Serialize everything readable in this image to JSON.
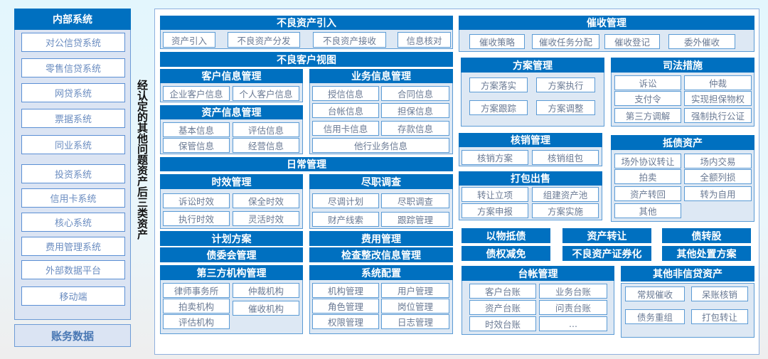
{
  "internal_systems": {
    "title": "内部系统",
    "items": [
      "对公信贷系统",
      "零售信贷系统",
      "网贷系统",
      "票据系统",
      "同业系统",
      "投资系统",
      "信用卡系统",
      "核心系统",
      "费用管理系统",
      "外部数据平台",
      "移动端"
    ]
  },
  "accounting_data": "账务数据",
  "vertical_label": "经认定的其他问题资产后三类资产",
  "modules": {
    "npa_intake": {
      "title": "不良资产引入",
      "items": [
        "资产引入",
        "不良资产分发",
        "不良资产接收",
        "信息核对"
      ]
    },
    "npa_customer_view": {
      "title": "不良客户视图"
    },
    "customer_info": {
      "title": "客户信息管理",
      "items": [
        "企业客户信息",
        "个人客户信息"
      ]
    },
    "asset_info": {
      "title": "资产信息管理",
      "items": [
        "基本信息",
        "评估信息",
        "保管信息",
        "经营信息"
      ]
    },
    "business_info": {
      "title": "业务信息管理",
      "items": [
        "授信信息",
        "合同信息",
        "台帐信息",
        "担保信息",
        "信用卡信息",
        "存款信息",
        "他行业务信息"
      ]
    },
    "daily_mgmt": {
      "title": "日常管理"
    },
    "timeliness": {
      "title": "时效管理",
      "items": [
        "诉讼时效",
        "保全时效",
        "执行时效",
        "灵活时效"
      ]
    },
    "due_diligence": {
      "title": "尽职调查",
      "items": [
        "尽调计划",
        "尽职调查",
        "财产线索",
        "跟踪管理"
      ]
    },
    "plan_scheme": {
      "title": "计划方案"
    },
    "creditor_committee": {
      "title": "债委会管理"
    },
    "expense_mgmt": {
      "title": "费用管理"
    },
    "inspection_rectification": {
      "title": "检查整改信息管理"
    },
    "third_party": {
      "title": "第三方机构管理",
      "items": [
        "律师事务所",
        "仲裁机构",
        "拍卖机构",
        "催收机构",
        "评估机构"
      ]
    },
    "system_config": {
      "title": "系统配置",
      "items": [
        "机构管理",
        "用户管理",
        "角色管理",
        "岗位管理",
        "权限管理",
        "日志管理"
      ]
    },
    "collection": {
      "title": "催收管理",
      "items": [
        "催收策略",
        "催收任务分配",
        "催收登记",
        "委外催收"
      ]
    },
    "scheme_mgmt": {
      "title": "方案管理",
      "items": [
        "方案落实",
        "方案执行",
        "方案跟踪",
        "方案调整"
      ]
    },
    "judicial": {
      "title": "司法措施",
      "items": [
        "诉讼",
        "仲裁",
        "支付令",
        "实现担保物权",
        "第三方调解",
        "强制执行公证"
      ]
    },
    "writeoff": {
      "title": "核销管理",
      "items": [
        "核销方案",
        "核销组包"
      ]
    },
    "bulk_sale": {
      "title": "打包出售",
      "items": [
        "转让立项",
        "组建资产池",
        "方案申报",
        "方案实施"
      ]
    },
    "foreclosed_assets": {
      "title": "抵债资产",
      "items": [
        "场外协议转让",
        "场内交易",
        "拍卖",
        "全额列损",
        "资产转回",
        "转为自用",
        "其他"
      ]
    },
    "disposal_tags": [
      "以物抵债",
      "资产转让",
      "债转股",
      "债权减免",
      "不良资产证券化",
      "其他处置方案"
    ],
    "ledger": {
      "title": "台帐管理",
      "items": [
        "客户台账",
        "业务台账",
        "资产台账",
        "问责台账",
        "时效台账",
        "..."
      ]
    },
    "other_noncredit": {
      "title": "其他非信贷资产",
      "items": [
        "常规催收",
        "呆账核销",
        "债务重组",
        "打包转让"
      ]
    }
  }
}
